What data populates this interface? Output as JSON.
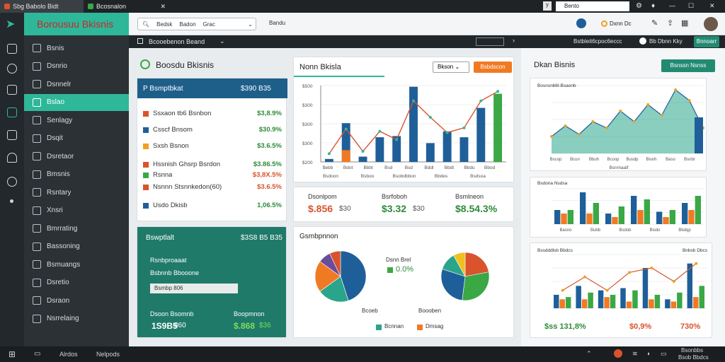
{
  "window": {
    "tabs": [
      {
        "label": "Sbg Babolo Bidt"
      },
      {
        "label": "Bcosnalon"
      }
    ],
    "controls": {
      "minimize": "—",
      "maximize": "☐",
      "close": "✕"
    }
  },
  "nav": {
    "search_value": "Bedsk",
    "search_tabs": [
      "Badon",
      "Grac"
    ],
    "link": "Bandu",
    "address_tab": "Bento",
    "account_label": "Dxnn Dc"
  },
  "toolbar": {
    "dropdown_label": "Bcooebenon Beand",
    "right_label": "Bstbleit6cpoc6eccc",
    "right_label2": "Bb Dbnn Kky",
    "signin_label": "Bnnoarr"
  },
  "sidebar": {
    "brand": "Borousuu Bkisnis",
    "items": [
      {
        "label": "Bsnis"
      },
      {
        "label": "Dsnrio"
      },
      {
        "label": "Dsnnelr"
      },
      {
        "label": "Bslao"
      },
      {
        "label": "Senlagy"
      },
      {
        "label": "Dsqit"
      },
      {
        "label": "Dsretaor"
      },
      {
        "label": "Bmsnis"
      },
      {
        "label": "Rsntary"
      },
      {
        "label": "Xnsri"
      },
      {
        "label": "Bmrrating"
      },
      {
        "label": "Bassoning"
      },
      {
        "label": "Bsmuangs"
      },
      {
        "label": "Dsretio"
      },
      {
        "label": "Dsraon"
      },
      {
        "label": "Nsrrelaing"
      }
    ]
  },
  "header": {
    "title": "Boosdu Bkisnis"
  },
  "summary": {
    "title": "P Bsmptbkat",
    "total": "$390 B35",
    "rows": [
      {
        "color": "#d9532c",
        "label": "Ssxaon tb6 Bsnbon",
        "value": "$3,8.9%",
        "value_color": "#2e8b3a"
      },
      {
        "color": "#1f5f99",
        "label": "Csscf Bnsom",
        "value": "$30.9%",
        "value_color": "#2e8b3a"
      },
      {
        "color": "#f0a020",
        "label": "Sxsh Bsnon",
        "value": "$3.6.5%",
        "value_color": "#2e8b3a"
      },
      {
        "color": "#d9532c",
        "label": "Hssnish Ghsrp Bsrdon",
        "value": "$3.86.5%",
        "value_color": "#2e8b3a"
      },
      {
        "color": "#3aa845",
        "label": "Rsnna",
        "value": "$3,8X.5%",
        "value_color": "#d9532c"
      },
      {
        "color": "#d9532c",
        "label": "Nsnnn Stsnnkedon(60)",
        "value": "$3.6.5%",
        "value_color": "#d9532c"
      },
      {
        "color": "#1f5f99",
        "label": "Usdo Dkisb",
        "value": "1,06.5%",
        "value_color": "#2e8b3a"
      }
    ]
  },
  "panel2": {
    "title": "Bswptlalt",
    "total": "$3S8 B5 B35",
    "line1": "Rsnbproaaat",
    "line2": "Bsbnnb Bbooone",
    "input_value": "Bsmbp 806",
    "left_label": "Dsoon Bsomnb",
    "left_value": "1S9B5",
    "left_unit": "860",
    "right_label": "Boopmnon",
    "right_value": "$.868",
    "right_unit": "$36"
  },
  "main_chart_card": {
    "title": "Nonn Bkisla",
    "select_label": "Bkson",
    "button_label": "Bsbdscon",
    "y_ticks": [
      "$500",
      "$300",
      "$300",
      "$300",
      "$200"
    ],
    "x_labels": [
      "$ebb",
      "Bdot",
      "Bbbt",
      "Bsd",
      "Bsd",
      "Bddl",
      "Bbdt",
      "Bbdu",
      "Bbod"
    ],
    "bottom_labels": [
      "Bsdoon",
      "Bsboo",
      "Bsobdbbon",
      "Bbdes",
      "Bsdsoa"
    ]
  },
  "chart_data": [
    {
      "type": "bar",
      "title": "",
      "categories": [
        "1",
        "2",
        "3",
        "4",
        "5",
        "6",
        "7",
        "8",
        "9",
        "10",
        "11"
      ],
      "series": [
        {
          "color": "#1f5f99",
          "values": [
            25,
            330,
            45,
            210,
            220,
            640,
            160,
            260,
            210,
            460,
            0
          ]
        },
        {
          "color": "#f07a23",
          "values": [
            0,
            100,
            0,
            0,
            0,
            0,
            0,
            0,
            0,
            0,
            0
          ]
        },
        {
          "color": "#3aa845",
          "values": [
            0,
            0,
            0,
            0,
            0,
            0,
            0,
            0,
            0,
            0,
            580
          ]
        }
      ],
      "line": {
        "color": "#d9532c",
        "values": [
          70,
          280,
          90,
          260,
          190,
          520,
          380,
          250,
          290,
          520,
          600
        ]
      },
      "ylim": [
        0,
        650
      ]
    },
    {
      "type": "area",
      "categories": [
        "1",
        "2",
        "3",
        "4",
        "5",
        "6",
        "7",
        "8",
        "9",
        "10",
        "11",
        "12"
      ],
      "series": [
        {
          "color": "#2aa58c",
          "values": [
            80,
            130,
            90,
            150,
            120,
            200,
            150,
            230,
            180,
            300,
            250,
            120
          ]
        }
      ],
      "ylim": [
        0,
        320
      ]
    },
    {
      "type": "bar",
      "categories": [
        "1",
        "2",
        "3",
        "4",
        "5",
        "6"
      ],
      "series": [
        {
          "color": "#1f5f99",
          "values": [
            40,
            90,
            30,
            80,
            35,
            60
          ]
        },
        {
          "color": "#f07a23",
          "values": [
            30,
            30,
            20,
            40,
            20,
            40
          ]
        },
        {
          "color": "#3aa845",
          "values": [
            40,
            60,
            50,
            70,
            40,
            80
          ]
        }
      ],
      "ylim": [
        0,
        100
      ]
    },
    {
      "type": "bar",
      "categories": [
        "1",
        "2",
        "3",
        "4",
        "5",
        "6",
        "7"
      ],
      "series": [
        {
          "color": "#1f5f99",
          "values": [
            30,
            50,
            40,
            45,
            90,
            20,
            100
          ]
        },
        {
          "color": "#f07a23",
          "values": [
            20,
            20,
            25,
            15,
            20,
            15,
            25
          ]
        },
        {
          "color": "#3aa845",
          "values": [
            25,
            35,
            30,
            40,
            30,
            35,
            50
          ]
        }
      ],
      "line": {
        "color": "#d9532c",
        "values": [
          40,
          70,
          40,
          80,
          90,
          60,
          100
        ]
      },
      "ylim": [
        0,
        120
      ]
    }
  ],
  "kpis": [
    {
      "label": "Dsonlpom",
      "value": "$.856",
      "unit": "$30",
      "color": "#d9532c"
    },
    {
      "label": "Bsrfoboh",
      "value": "$3.32",
      "unit": "$30",
      "color": "#2e8b3a"
    },
    {
      "label": "Bsmlneon",
      "value": "$8.54.3%",
      "unit": "",
      "color": "#2e8b3a"
    }
  ],
  "pie_card": {
    "title": "Gsmbpnnon",
    "middle_title": "Dsnn Brel",
    "middle_value": "0.0%",
    "legend_top": [
      "Bcoeb",
      "Boooben"
    ],
    "legend_bottom": [
      "Bcnnan",
      "Dmsag"
    ],
    "pie1": [
      {
        "color": "#1f5f99",
        "value": 45
      },
      {
        "color": "#2aa58c",
        "value": 20
      },
      {
        "color": "#f07a23",
        "value": 20
      },
      {
        "color": "#6a4c9c",
        "value": 8
      },
      {
        "color": "#d9532c",
        "value": 7
      }
    ],
    "pie2": [
      {
        "color": "#d9532c",
        "value": 22
      },
      {
        "color": "#3aa845",
        "value": 30
      },
      {
        "color": "#1f5f99",
        "value": 28
      },
      {
        "color": "#2aa58c",
        "value": 12
      },
      {
        "color": "#f0c020",
        "value": 8
      }
    ]
  },
  "right_top": {
    "title": "Dkan Bisnis",
    "button_label": "Bsnssn Nsnss",
    "legend": "Bosnsnb6l-Bsaonb",
    "x_labels": [
      "Bscop",
      "Bcun",
      "Bbuh",
      "Bcoop",
      "Busdp",
      "Bisnh",
      "Baso",
      "Bsnbr"
    ],
    "foot_label": "Bsnmaalf"
  },
  "right_mid": {
    "legend": "Bsdona Nsdsa",
    "x_labels": [
      "Basno",
      "Bubb",
      "Bsdob",
      "Bisdo",
      "Bbdqp"
    ]
  },
  "right_bot": {
    "legend": "Bssdddlsb Bbdcs",
    "right_legend": "Bnbsb Dbcs",
    "foot": [
      {
        "value": "$ss 131,8%",
        "color": "#2e8b3a"
      },
      {
        "value": "$0,9%",
        "color": "#d9532c"
      },
      {
        "value": "730%",
        "color": "#d9532c"
      }
    ]
  },
  "taskbar": {
    "items": [
      "Alrdos",
      "Nelpods"
    ],
    "time": "Bsonbbs",
    "date": "Bsob Bbdcs"
  }
}
